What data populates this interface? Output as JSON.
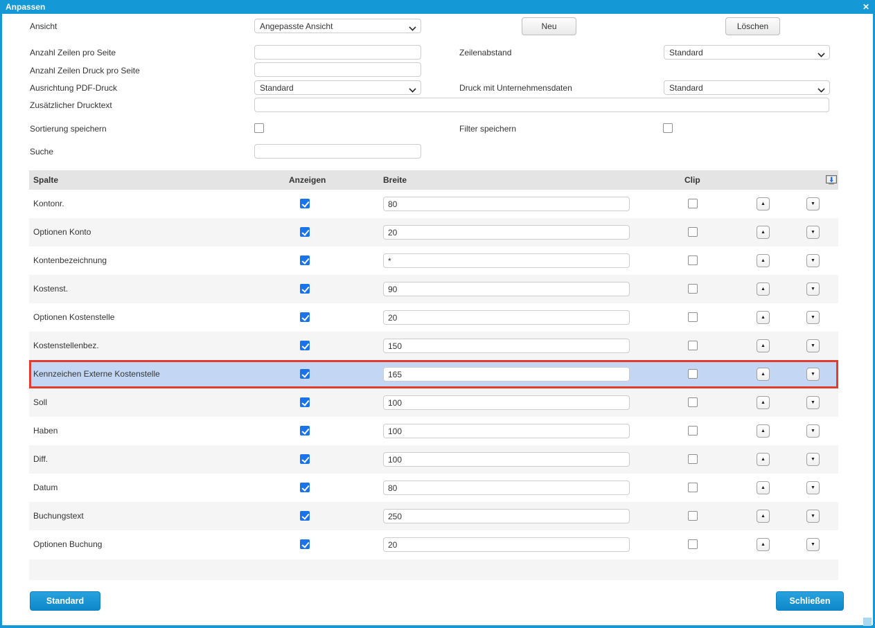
{
  "dialog": {
    "title": "Anpassen"
  },
  "icons": {
    "close": "✕",
    "up_arrow": "▲",
    "down_arrow": "▼"
  },
  "colors": {
    "titlebar": "#1499d6",
    "accent_button": "#1697d9",
    "checked_checkbox": "#1a73e8",
    "highlight_row_bg": "#c3d7f5",
    "highlight_row_border": "#e23c2e",
    "table_header_bg": "#e4e4e4"
  },
  "form": {
    "ansicht": {
      "label": "Ansicht",
      "value": "Angepasste Ansicht"
    },
    "neu_button": "Neu",
    "loeschen_button": "Löschen",
    "anzahl_zeilen": {
      "label": "Anzahl Zeilen pro Seite",
      "value": ""
    },
    "zeilenabstand": {
      "label": "Zeilenabstand",
      "value": "Standard"
    },
    "anzahl_zeilen_druck": {
      "label": "Anzahl Zeilen Druck pro Seite",
      "value": ""
    },
    "ausrichtung_pdf": {
      "label": "Ausrichtung PDF-Druck",
      "value": "Standard"
    },
    "druck_unternehmensdaten": {
      "label": "Druck mit Unternehmensdaten",
      "value": "Standard"
    },
    "drucktext": {
      "label": "Zusätzlicher Drucktext",
      "value": ""
    },
    "sortierung": {
      "label": "Sortierung speichern",
      "checked": false
    },
    "filter": {
      "label": "Filter speichern",
      "checked": false
    },
    "suche": {
      "label": "Suche",
      "value": ""
    }
  },
  "table": {
    "headers": {
      "spalte": "Spalte",
      "anzeigen": "Anzeigen",
      "breite": "Breite",
      "clip": "Clip"
    },
    "rows": [
      {
        "label": "Kontonr.",
        "anzeigen": true,
        "breite": "80",
        "clip": false,
        "highlighted": false
      },
      {
        "label": "Optionen Konto",
        "anzeigen": true,
        "breite": "20",
        "clip": false,
        "highlighted": false
      },
      {
        "label": "Kontenbezeichnung",
        "anzeigen": true,
        "breite": "*",
        "clip": false,
        "highlighted": false
      },
      {
        "label": "Kostenst.",
        "anzeigen": true,
        "breite": "90",
        "clip": false,
        "highlighted": false
      },
      {
        "label": "Optionen Kostenstelle",
        "anzeigen": true,
        "breite": "20",
        "clip": false,
        "highlighted": false
      },
      {
        "label": "Kostenstellenbez.",
        "anzeigen": true,
        "breite": "150",
        "clip": false,
        "highlighted": false
      },
      {
        "label": "Kennzeichen Externe Kostenstelle",
        "anzeigen": true,
        "breite": "165",
        "clip": false,
        "highlighted": true
      },
      {
        "label": "Soll",
        "anzeigen": true,
        "breite": "100",
        "clip": false,
        "highlighted": false
      },
      {
        "label": "Haben",
        "anzeigen": true,
        "breite": "100",
        "clip": false,
        "highlighted": false
      },
      {
        "label": "Diff.",
        "anzeigen": true,
        "breite": "100",
        "clip": false,
        "highlighted": false
      },
      {
        "label": "Datum",
        "anzeigen": true,
        "breite": "80",
        "clip": false,
        "highlighted": false
      },
      {
        "label": "Buchungstext",
        "anzeigen": true,
        "breite": "250",
        "clip": false,
        "highlighted": false
      },
      {
        "label": "Optionen Buchung",
        "anzeigen": true,
        "breite": "20",
        "clip": false,
        "highlighted": false
      }
    ]
  },
  "footer": {
    "standard_button": "Standard",
    "schliessen_button": "Schließen"
  }
}
